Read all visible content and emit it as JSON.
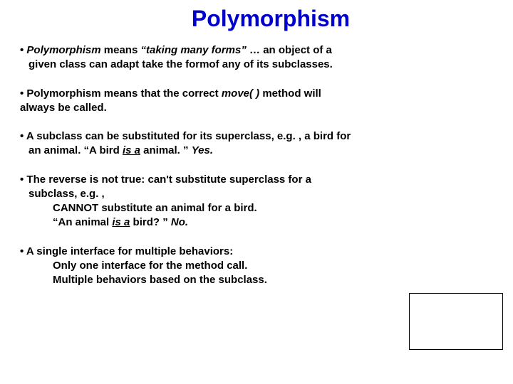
{
  "title": "Polymorphism",
  "bullets": {
    "b1": {
      "prefix": "• ",
      "term": "Polymorphism",
      "mid1": " means ",
      "quote": "“taking many forms”",
      "rest1": " … an object of a",
      "line2": "given class can adapt take the formof any of its subclasses."
    },
    "b2": {
      "line1a": "• Polymorphism means that the correct ",
      "move": "move( )",
      "line1b": " method will",
      "line2": "always be called."
    },
    "b3": {
      "line1": "• A subclass can be substituted for its superclass, e.g. , a bird for",
      "line2a": "an animal.  “A bird ",
      "isa": "is a",
      "line2b": " animal. ”  ",
      "yes": "Yes."
    },
    "b4": {
      "line1": "• The reverse is not true: can't substitute superclass for a",
      "line2": "subclass, e.g. ,",
      "line3": "CANNOT substitute an animal for a bird.",
      "line4a": "“An animal ",
      "isa": "is a",
      "line4b": " bird? ”  ",
      "no": "No."
    },
    "b5": {
      "line1": "• A single interface for multiple behaviors:",
      "line2": "Only one interface for the method call.",
      "line3": "Multiple behaviors based on the subclass."
    }
  },
  "colors": {
    "title": "#0000cc",
    "text": "#000000",
    "background": "#ffffff",
    "box_border": "#000000"
  },
  "fontsize": {
    "title": 32,
    "body": 15
  }
}
